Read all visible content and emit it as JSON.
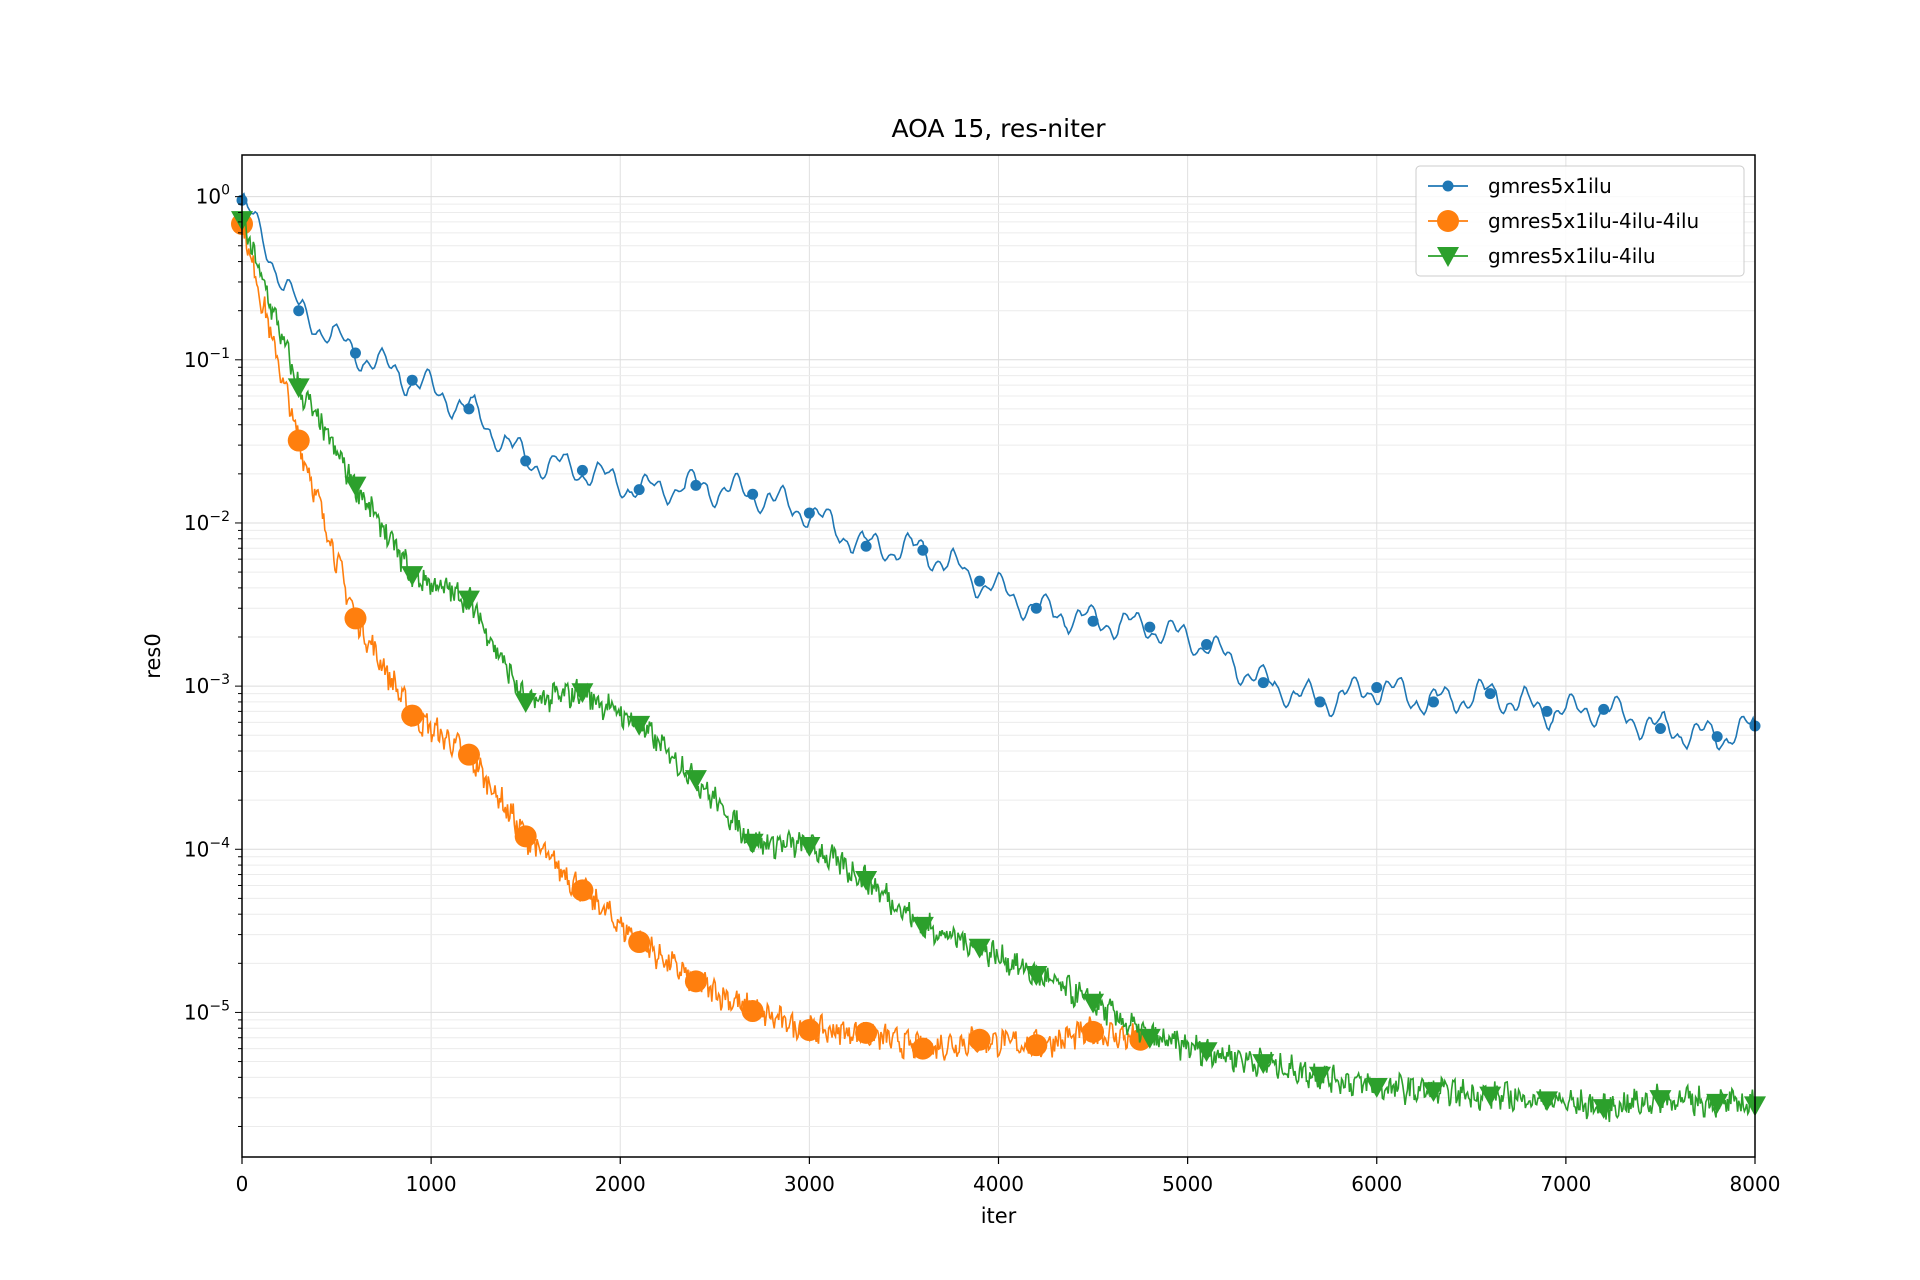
{
  "chart_data": {
    "type": "line",
    "title": "AOA 15, res-niter",
    "xlabel": "iter",
    "ylabel": "res0",
    "xlim": [
      0,
      8000
    ],
    "ylim": [
      1.3e-06,
      1.8
    ],
    "yscale": "log",
    "grid": true,
    "legend_position": "top-right",
    "x_ticks": [
      "0",
      "1000",
      "2000",
      "3000",
      "4000",
      "5000",
      "6000",
      "7000",
      "8000"
    ],
    "y_ticks": [
      {
        "base": "10",
        "exp": "0"
      },
      {
        "base": "10",
        "exp": "−1"
      },
      {
        "base": "10",
        "exp": "−2"
      },
      {
        "base": "10",
        "exp": "−3"
      },
      {
        "base": "10",
        "exp": "−4"
      },
      {
        "base": "10",
        "exp": "−5"
      }
    ],
    "series": [
      {
        "name": "gmres5x1ilu",
        "color": "#1f77b4",
        "marker": "circle",
        "x": [
          0,
          300,
          600,
          900,
          1200,
          1500,
          1800,
          2100,
          2400,
          2700,
          3000,
          3300,
          3600,
          3900,
          4200,
          4500,
          4800,
          5100,
          5400,
          5700,
          6000,
          6300,
          6600,
          6900,
          7200,
          7500,
          7800,
          8000
        ],
        "y": [
          0.95,
          0.2,
          0.11,
          0.075,
          0.05,
          0.024,
          0.021,
          0.016,
          0.017,
          0.015,
          0.0115,
          0.0072,
          0.0068,
          0.0044,
          0.003,
          0.0025,
          0.0023,
          0.0018,
          0.00105,
          0.0008,
          0.00098,
          0.0008,
          0.0009,
          0.0007,
          0.00072,
          0.00055,
          0.00049,
          0.00057
        ]
      },
      {
        "name": "gmres5x1ilu-4ilu-4ilu",
        "color": "#ff7f0e",
        "marker": "circle-large",
        "x": [
          0,
          300,
          600,
          900,
          1200,
          1500,
          1800,
          2100,
          2400,
          2700,
          3000,
          3300,
          3600,
          3900,
          4200,
          4500,
          4750
        ],
        "y": [
          0.68,
          0.032,
          0.0026,
          0.00066,
          0.00038,
          0.00012,
          5.6e-05,
          2.7e-05,
          1.55e-05,
          1.02e-05,
          7.8e-06,
          7.5e-06,
          6e-06,
          6.8e-06,
          6.3e-06,
          7.6e-06,
          6.8e-06
        ]
      },
      {
        "name": "gmres5x1ilu-4ilu",
        "color": "#2ca02c",
        "marker": "triangle-down",
        "x": [
          0,
          300,
          600,
          900,
          1200,
          1500,
          1800,
          2100,
          2400,
          2700,
          3000,
          3300,
          3600,
          3900,
          4200,
          4500,
          4800,
          5100,
          5400,
          5700,
          6000,
          6300,
          6600,
          6900,
          7200,
          7500,
          7800,
          8000
        ],
        "y": [
          0.72,
          0.068,
          0.017,
          0.0048,
          0.0034,
          0.0008,
          0.00092,
          0.00058,
          0.00027,
          0.00011,
          0.000105,
          6.5e-05,
          3.4e-05,
          2.5e-05,
          1.7e-05,
          1.15e-05,
          7e-06,
          5.8e-06,
          4.9e-06,
          4.1e-06,
          3.5e-06,
          3.3e-06,
          3.1e-06,
          2.9e-06,
          2.6e-06,
          2.95e-06,
          2.8e-06,
          2.7e-06
        ]
      }
    ]
  }
}
